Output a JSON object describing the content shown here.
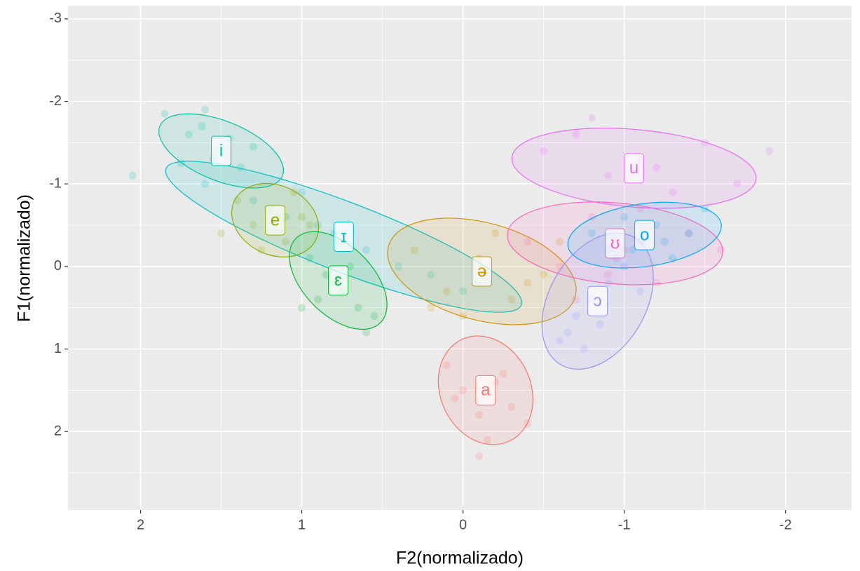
{
  "chart_data": {
    "type": "scatter",
    "x_label": "F2(normalizado)",
    "y_label": "F1(normalizado)",
    "xlim": [
      2.45,
      -2.41
    ],
    "ylim": [
      -3.16,
      2.95
    ],
    "xticks": [
      2,
      1,
      0,
      -1,
      -2
    ],
    "yticks": [
      -3,
      -2,
      -1,
      0,
      1,
      2
    ],
    "grid": true,
    "series": [
      {
        "name": "i",
        "color": "#00C19F",
        "x": [
          1.85,
          1.7,
          1.62,
          1.55,
          1.45,
          1.38,
          1.3,
          1.75,
          2.05,
          1.6
        ],
        "y": [
          -1.85,
          -1.6,
          -1.7,
          -1.3,
          -1.55,
          -1.2,
          -1.45,
          -1.25,
          -1.1,
          -1.9
        ],
        "ellipse": {
          "cx": 1.5,
          "cy": -1.4,
          "rx": 0.41,
          "ry": 0.36,
          "angle": 22
        }
      },
      {
        "name": "ɪ",
        "color": "#00BFC4",
        "x": [
          1.6,
          1.3,
          1.1,
          0.9,
          0.6,
          0.4,
          0.2,
          0.0,
          0.8,
          1.0
        ],
        "y": [
          -1.0,
          -0.8,
          -0.6,
          -0.5,
          -0.2,
          0.0,
          0.1,
          0.3,
          -0.4,
          -0.9
        ],
        "ellipse": {
          "cx": 0.74,
          "cy": -0.36,
          "rx": 1.18,
          "ry": 0.42,
          "angle": 21
        }
      },
      {
        "name": "e",
        "color": "#93AA00",
        "x": [
          1.4,
          1.3,
          1.2,
          1.1,
          1.0,
          1.25,
          1.05,
          1.5,
          0.95,
          1.15
        ],
        "y": [
          -0.8,
          -0.5,
          -0.7,
          -0.3,
          -0.6,
          -0.2,
          -0.9,
          -0.4,
          -0.5,
          -0.6
        ],
        "ellipse": {
          "cx": 1.165,
          "cy": -0.56,
          "rx": 0.28,
          "ry": 0.42,
          "angle": 25
        }
      },
      {
        "name": "ɛ",
        "color": "#00BA38",
        "x": [
          0.95,
          0.85,
          0.75,
          0.65,
          0.55,
          0.9,
          0.7,
          0.6,
          0.8,
          1.0
        ],
        "y": [
          -0.1,
          0.1,
          0.3,
          0.5,
          0.6,
          0.4,
          0.0,
          0.8,
          0.2,
          0.5
        ],
        "ellipse": {
          "cx": 0.774,
          "cy": 0.17,
          "rx": 0.37,
          "ry": 0.42,
          "angle": 45
        }
      },
      {
        "name": "ə",
        "color": "#D39200",
        "x": [
          0.3,
          0.1,
          -0.1,
          -0.3,
          -0.5,
          0.0,
          -0.2,
          -0.4,
          0.2,
          -0.6
        ],
        "y": [
          -0.2,
          0.3,
          -0.1,
          0.4,
          0.1,
          0.6,
          -0.4,
          0.2,
          0.5,
          -0.3
        ],
        "ellipse": {
          "cx": -0.117,
          "cy": 0.06,
          "rx": 0.6,
          "ry": 0.59,
          "angle": 15
        }
      },
      {
        "name": "a",
        "color": "#F8766D",
        "x": [
          0.1,
          0.0,
          -0.1,
          -0.2,
          -0.3,
          -0.15,
          0.05,
          -0.25,
          -0.4,
          -0.1
        ],
        "y": [
          1.2,
          1.5,
          1.8,
          1.4,
          1.7,
          2.1,
          1.6,
          1.3,
          1.9,
          2.3
        ],
        "ellipse": {
          "cx": -0.14,
          "cy": 1.5,
          "rx": 0.28,
          "ry": 0.68,
          "angle": -25
        }
      },
      {
        "name": "u",
        "color": "#E76BF3",
        "x": [
          -0.5,
          -0.7,
          -0.9,
          -1.1,
          -1.3,
          -1.5,
          -1.7,
          -0.8,
          -1.2,
          -1.9
        ],
        "y": [
          -1.4,
          -1.6,
          -1.1,
          -1.3,
          -0.9,
          -1.5,
          -1.0,
          -1.8,
          -1.2,
          -1.4
        ],
        "ellipse": {
          "cx": -1.06,
          "cy": -1.19,
          "rx": 0.76,
          "ry": 0.47,
          "angle": 5
        }
      },
      {
        "name": "ʊ",
        "color": "#FF62BC",
        "x": [
          -0.4,
          -0.6,
          -0.8,
          -1.0,
          -1.2,
          -1.4,
          -0.7,
          -1.1,
          -0.9,
          -1.6
        ],
        "y": [
          -0.3,
          0.0,
          -0.6,
          -0.2,
          0.2,
          -0.4,
          0.4,
          -0.7,
          0.1,
          -0.2
        ],
        "ellipse": {
          "cx": -0.943,
          "cy": -0.28,
          "rx": 0.67,
          "ry": 0.49,
          "angle": 5
        }
      },
      {
        "name": "o",
        "color": "#00A9FF",
        "x": [
          -0.8,
          -0.9,
          -1.0,
          -1.1,
          -1.2,
          -1.3,
          -1.4,
          -1.5,
          -1.05,
          -1.25
        ],
        "y": [
          -0.4,
          -0.2,
          -0.6,
          -0.3,
          -0.5,
          -0.1,
          -0.4,
          -0.7,
          -0.2,
          -0.3
        ],
        "ellipse": {
          "cx": -1.126,
          "cy": -0.38,
          "rx": 0.48,
          "ry": 0.38,
          "angle": -8
        }
      },
      {
        "name": "ɔ",
        "color": "#9590FF",
        "x": [
          -0.6,
          -0.7,
          -0.8,
          -0.9,
          -1.0,
          -0.75,
          -0.85,
          -0.65,
          -0.95,
          -1.1
        ],
        "y": [
          0.9,
          0.6,
          0.4,
          0.2,
          0.0,
          1.0,
          0.7,
          0.8,
          -0.1,
          0.3
        ],
        "ellipse": {
          "cx": -0.835,
          "cy": 0.42,
          "rx": 0.3,
          "ry": 0.89,
          "angle": 30
        }
      }
    ]
  }
}
